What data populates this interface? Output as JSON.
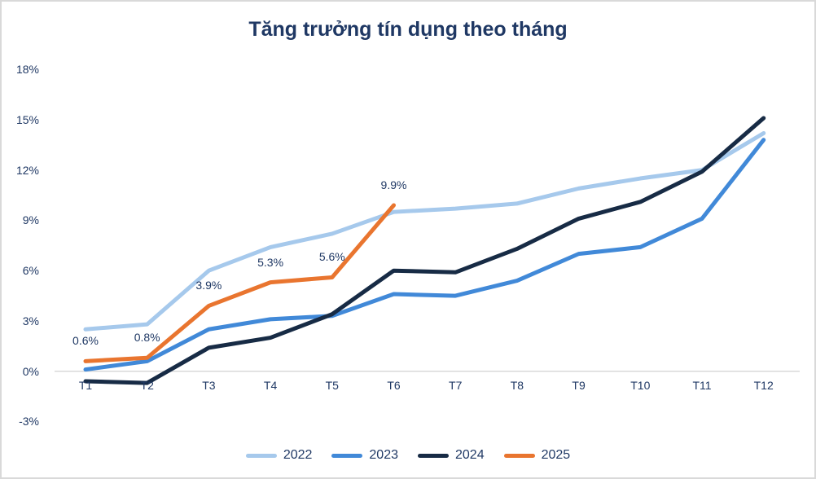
{
  "page": {
    "title": "Tăng trưởng tín dụng theo tháng"
  },
  "chart_data": {
    "type": "line",
    "title": "Tăng trưởng tín dụng theo tháng",
    "x_labels": [
      "T1",
      "T2",
      "T3",
      "T4",
      "T5",
      "T6",
      "T7",
      "T8",
      "T9",
      "T10",
      "T11",
      "T12"
    ],
    "y_ticks": [
      {
        "value": 18,
        "label": "18%"
      },
      {
        "value": 15,
        "label": "15%"
      },
      {
        "value": 12,
        "label": "12%"
      },
      {
        "value": 9,
        "label": "9%"
      },
      {
        "value": 6,
        "label": "6%"
      },
      {
        "value": 3,
        "label": "3%"
      },
      {
        "value": 0,
        "label": "0%"
      },
      {
        "value": -3,
        "label": "-3%"
      }
    ],
    "ylim": [
      -3,
      18
    ],
    "grid": false,
    "baseline_at": 0,
    "legend_position": "bottom",
    "series": [
      {
        "name": "2022",
        "color": "#A6C9EC",
        "values": [
          2.5,
          2.8,
          6.0,
          7.4,
          8.2,
          9.5,
          9.7,
          10.0,
          10.9,
          11.5,
          12.0,
          14.2
        ]
      },
      {
        "name": "2023",
        "color": "#4189D8",
        "values": [
          0.1,
          0.6,
          2.5,
          3.1,
          3.3,
          4.6,
          4.5,
          5.4,
          7.0,
          7.4,
          9.1,
          13.8
        ]
      },
      {
        "name": "2024",
        "color": "#172B45",
        "values": [
          -0.6,
          -0.7,
          1.4,
          2.0,
          3.4,
          6.0,
          5.9,
          7.3,
          9.1,
          10.1,
          11.9,
          15.1
        ]
      },
      {
        "name": "2025",
        "color": "#E9752F",
        "values": [
          0.6,
          0.8,
          3.9,
          5.3,
          5.6,
          9.9,
          null,
          null,
          null,
          null,
          null,
          null
        ]
      }
    ],
    "annotations": [
      {
        "text": "0.6%",
        "x_index": 0,
        "value": 0.6
      },
      {
        "text": "0.8%",
        "x_index": 1,
        "value": 0.8
      },
      {
        "text": "3.9%",
        "x_index": 2,
        "value": 3.9
      },
      {
        "text": "5.3%",
        "x_index": 3,
        "value": 5.3
      },
      {
        "text": "5.6%",
        "x_index": 4,
        "value": 5.6
      },
      {
        "text": "9.9%",
        "x_index": 5,
        "value": 9.9
      }
    ],
    "colors": {
      "text": "#1F3864",
      "baseline": "#D9D9D9",
      "border": "#D9D9D9",
      "background": "#FFFFFF"
    }
  }
}
